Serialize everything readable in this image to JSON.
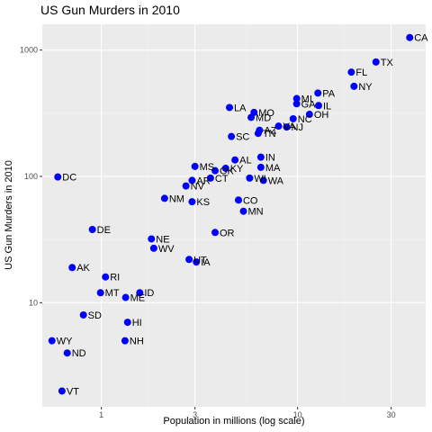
{
  "chart_data": {
    "type": "scatter",
    "title": "US Gun Murders in 2010",
    "xlabel": "Population in millions (log scale)",
    "ylabel": "US Gun Murders in 2010",
    "x_scale": "log",
    "y_scale": "log",
    "xlim": [
      0.5,
      45
    ],
    "ylim": [
      1.5,
      1600
    ],
    "x_ticks": [
      1,
      3,
      10,
      30
    ],
    "x_tick_labels": [
      "1",
      "3",
      "10",
      "30"
    ],
    "y_ticks": [
      10,
      100,
      1000
    ],
    "y_tick_labels": [
      "10",
      "100",
      "1000"
    ],
    "grid": true,
    "background": "#ebebeb",
    "point_color": "#0000ff",
    "points": [
      {
        "label": "CA",
        "x": 37.3,
        "y": 1257
      },
      {
        "label": "TX",
        "x": 25.1,
        "y": 805
      },
      {
        "label": "FL",
        "x": 18.8,
        "y": 669
      },
      {
        "label": "NY",
        "x": 19.4,
        "y": 517
      },
      {
        "label": "PA",
        "x": 12.7,
        "y": 457
      },
      {
        "label": "MI",
        "x": 9.9,
        "y": 413
      },
      {
        "label": "GA",
        "x": 9.9,
        "y": 376
      },
      {
        "label": "IL",
        "x": 12.8,
        "y": 364
      },
      {
        "label": "LA",
        "x": 4.5,
        "y": 351
      },
      {
        "label": "MO",
        "x": 6.0,
        "y": 321
      },
      {
        "label": "OH",
        "x": 11.5,
        "y": 310
      },
      {
        "label": "MD",
        "x": 5.8,
        "y": 293
      },
      {
        "label": "NC",
        "x": 9.5,
        "y": 286
      },
      {
        "label": "VA",
        "x": 8.0,
        "y": 250
      },
      {
        "label": "NJ",
        "x": 8.8,
        "y": 246
      },
      {
        "label": "AZ",
        "x": 6.4,
        "y": 232
      },
      {
        "label": "TN",
        "x": 6.3,
        "y": 219
      },
      {
        "label": "SC",
        "x": 4.6,
        "y": 207
      },
      {
        "label": "IN",
        "x": 6.5,
        "y": 142
      },
      {
        "label": "AL",
        "x": 4.8,
        "y": 135
      },
      {
        "label": "MA",
        "x": 6.5,
        "y": 118
      },
      {
        "label": "MS",
        "x": 3.0,
        "y": 120
      },
      {
        "label": "OK",
        "x": 3.8,
        "y": 111
      },
      {
        "label": "KY",
        "x": 4.3,
        "y": 116
      },
      {
        "label": "DC",
        "x": 0.6,
        "y": 99
      },
      {
        "label": "WI",
        "x": 5.7,
        "y": 97
      },
      {
        "label": "WA",
        "x": 6.7,
        "y": 93
      },
      {
        "label": "AR",
        "x": 2.9,
        "y": 93
      },
      {
        "label": "CT",
        "x": 3.6,
        "y": 97
      },
      {
        "label": "NV",
        "x": 2.7,
        "y": 84
      },
      {
        "label": "NM",
        "x": 2.1,
        "y": 67
      },
      {
        "label": "KS",
        "x": 2.9,
        "y": 63
      },
      {
        "label": "CO",
        "x": 5.0,
        "y": 65
      },
      {
        "label": "MN",
        "x": 5.3,
        "y": 53
      },
      {
        "label": "DE",
        "x": 0.9,
        "y": 38
      },
      {
        "label": "OR",
        "x": 3.8,
        "y": 36
      },
      {
        "label": "NE",
        "x": 1.8,
        "y": 32
      },
      {
        "label": "WV",
        "x": 1.85,
        "y": 27
      },
      {
        "label": "UT",
        "x": 2.8,
        "y": 22
      },
      {
        "label": "IA",
        "x": 3.05,
        "y": 21
      },
      {
        "label": "AK",
        "x": 0.71,
        "y": 19
      },
      {
        "label": "RI",
        "x": 1.05,
        "y": 16
      },
      {
        "label": "MT",
        "x": 0.99,
        "y": 12
      },
      {
        "label": "ID",
        "x": 1.57,
        "y": 12
      },
      {
        "label": "ME",
        "x": 1.33,
        "y": 11
      },
      {
        "label": "SD",
        "x": 0.81,
        "y": 8
      },
      {
        "label": "HI",
        "x": 1.36,
        "y": 7
      },
      {
        "label": "WY",
        "x": 0.56,
        "y": 5
      },
      {
        "label": "NH",
        "x": 1.32,
        "y": 5
      },
      {
        "label": "ND",
        "x": 0.67,
        "y": 4
      },
      {
        "label": "VT",
        "x": 0.63,
        "y": 2
      }
    ]
  }
}
